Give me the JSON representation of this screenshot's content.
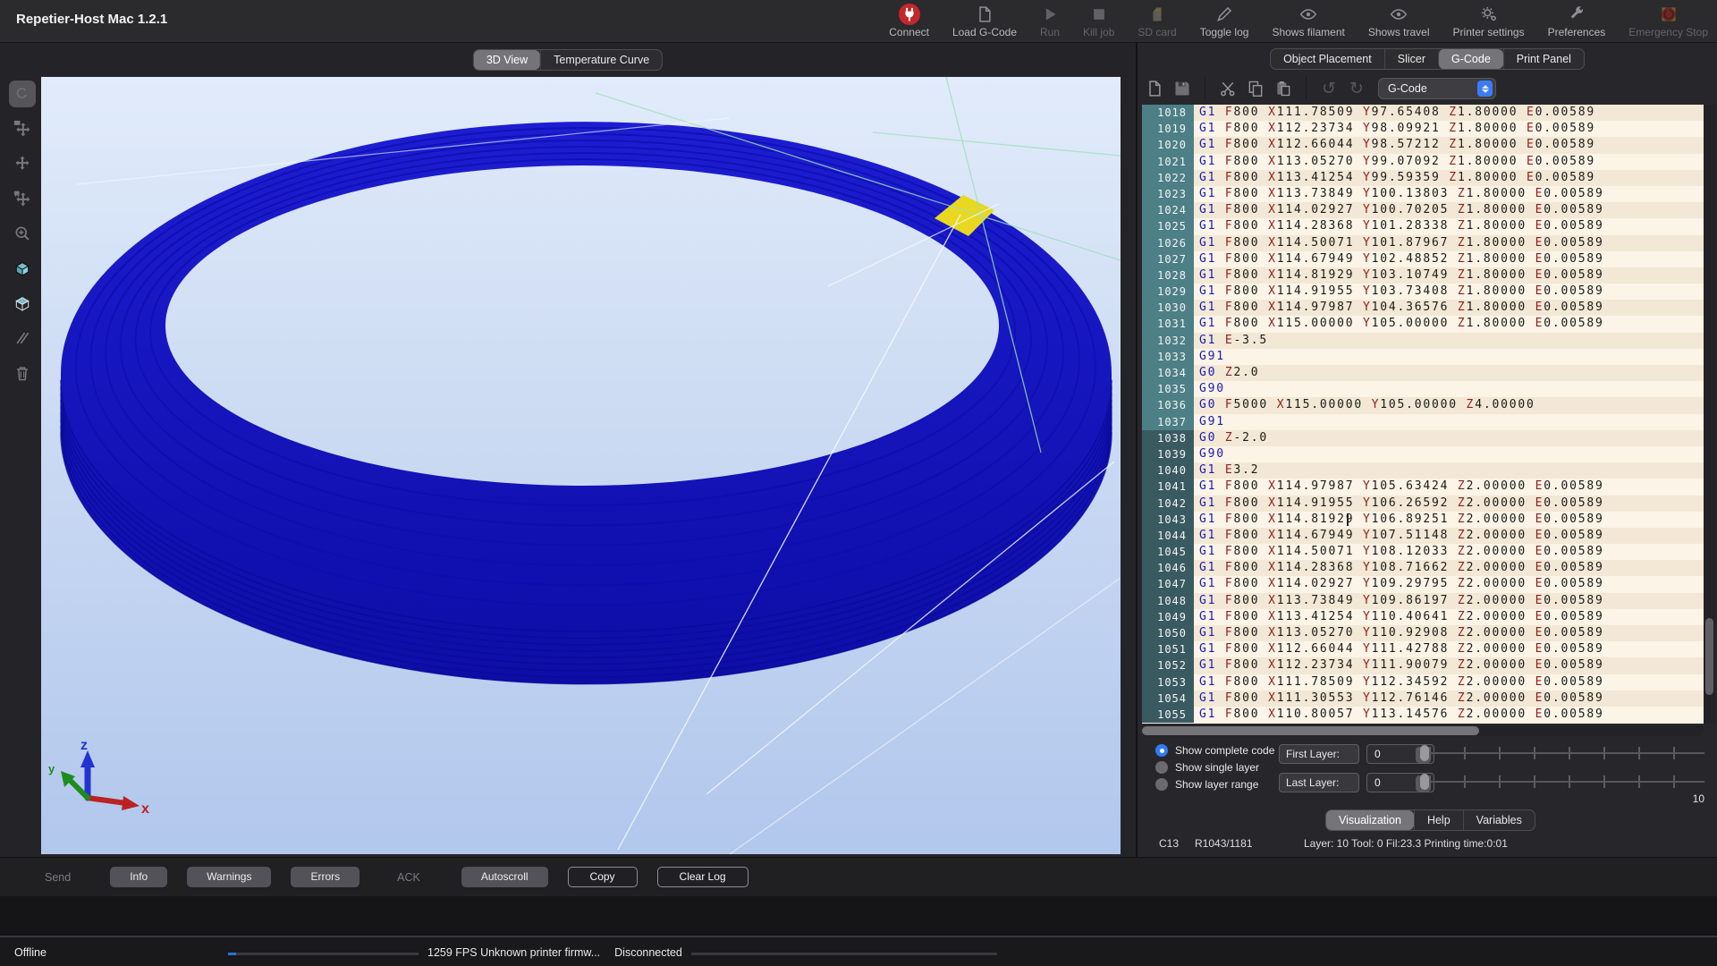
{
  "app": {
    "title": "Repetier-Host Mac 1.2.1"
  },
  "toolbar": {
    "items": [
      {
        "name": "connect",
        "label": "Connect",
        "disabled": false
      },
      {
        "name": "load-gcode",
        "label": "Load G-Code",
        "disabled": false
      },
      {
        "name": "run",
        "label": "Run",
        "disabled": true
      },
      {
        "name": "kill-job",
        "label": "Kill job",
        "disabled": true
      },
      {
        "name": "sd-card",
        "label": "SD card",
        "disabled": true
      },
      {
        "name": "toggle-log",
        "label": "Toggle log",
        "disabled": false
      },
      {
        "name": "shows-filament",
        "label": "Shows filament",
        "disabled": false
      },
      {
        "name": "shows-travel",
        "label": "Shows travel",
        "disabled": false
      },
      {
        "name": "printer-settings",
        "label": "Printer settings",
        "disabled": false
      },
      {
        "name": "preferences",
        "label": "Preferences",
        "disabled": false
      },
      {
        "name": "emergency-stop",
        "label": "Emergency Stop",
        "disabled": true
      }
    ]
  },
  "view_tabs": {
    "items": [
      {
        "label": "3D View",
        "active": true
      },
      {
        "label": "Temperature Curve",
        "active": false
      }
    ]
  },
  "canvas": {
    "tools": [
      {
        "name": "view-mode-button"
      },
      {
        "name": "rotate-camera-tool"
      },
      {
        "name": "move-viewpoint-tool"
      },
      {
        "name": "move-object-tool"
      },
      {
        "name": "zoom-tool"
      },
      {
        "name": "filament-visualization-toggle"
      },
      {
        "name": "travel-visualization-toggle"
      },
      {
        "name": "cross-section-tool"
      },
      {
        "name": "delete-object-button"
      }
    ],
    "axis": {
      "z": "z",
      "x": "x",
      "y": "y"
    }
  },
  "right_tabs": {
    "items": [
      {
        "label": "Object Placement",
        "active": false
      },
      {
        "label": "Slicer",
        "active": false
      },
      {
        "label": "G-Code",
        "active": true
      },
      {
        "label": "Print Panel",
        "active": false
      }
    ]
  },
  "editor": {
    "toolbar_icons": [
      "new-file",
      "save",
      "|",
      "cut",
      "copy",
      "paste",
      "|",
      "undo",
      "redo"
    ],
    "dropdown_value": "G-Code",
    "gutter_dark_from": 1038,
    "caret_line": 1043,
    "lines": [
      {
        "n": 1018,
        "t": "G1 F800 X111.78509 Y97.65408 Z1.80000 E0.00589"
      },
      {
        "n": 1019,
        "t": "G1 F800 X112.23734 Y98.09921 Z1.80000 E0.00589"
      },
      {
        "n": 1020,
        "t": "G1 F800 X112.66044 Y98.57212 Z1.80000 E0.00589"
      },
      {
        "n": 1021,
        "t": "G1 F800 X113.05270 Y99.07092 Z1.80000 E0.00589"
      },
      {
        "n": 1022,
        "t": "G1 F800 X113.41254 Y99.59359 Z1.80000 E0.00589"
      },
      {
        "n": 1023,
        "t": "G1 F800 X113.73849 Y100.13803 Z1.80000 E0.00589"
      },
      {
        "n": 1024,
        "t": "G1 F800 X114.02927 Y100.70205 Z1.80000 E0.00589"
      },
      {
        "n": 1025,
        "t": "G1 F800 X114.28368 Y101.28338 Z1.80000 E0.00589"
      },
      {
        "n": 1026,
        "t": "G1 F800 X114.50071 Y101.87967 Z1.80000 E0.00589"
      },
      {
        "n": 1027,
        "t": "G1 F800 X114.67949 Y102.48852 Z1.80000 E0.00589"
      },
      {
        "n": 1028,
        "t": "G1 F800 X114.81929 Y103.10749 Z1.80000 E0.00589"
      },
      {
        "n": 1029,
        "t": "G1 F800 X114.91955 Y103.73408 Z1.80000 E0.00589"
      },
      {
        "n": 1030,
        "t": "G1 F800 X114.97987 Y104.36576 Z1.80000 E0.00589"
      },
      {
        "n": 1031,
        "t": "G1 F800 X115.00000 Y105.00000 Z1.80000 E0.00589"
      },
      {
        "n": 1032,
        "t": "G1 E-3.5"
      },
      {
        "n": 1033,
        "t": "G91"
      },
      {
        "n": 1034,
        "t": "G0 Z2.0"
      },
      {
        "n": 1035,
        "t": "G90"
      },
      {
        "n": 1036,
        "t": "G0 F5000 X115.00000 Y105.00000 Z4.00000"
      },
      {
        "n": 1037,
        "t": "G91"
      },
      {
        "n": 1038,
        "t": "G0 Z-2.0"
      },
      {
        "n": 1039,
        "t": "G90"
      },
      {
        "n": 1040,
        "t": "G1 E3.2"
      },
      {
        "n": 1041,
        "t": "G1 F800 X114.97987 Y105.63424 Z2.00000 E0.00589"
      },
      {
        "n": 1042,
        "t": "G1 F800 X114.91955 Y106.26592 Z2.00000 E0.00589"
      },
      {
        "n": 1043,
        "t": "G1 F800 X114.81929 Y106.89251 Z2.00000 E0.00589"
      },
      {
        "n": 1044,
        "t": "G1 F800 X114.67949 Y107.51148 Z2.00000 E0.00589"
      },
      {
        "n": 1045,
        "t": "G1 F800 X114.50071 Y108.12033 Z2.00000 E0.00589"
      },
      {
        "n": 1046,
        "t": "G1 F800 X114.28368 Y108.71662 Z2.00000 E0.00589"
      },
      {
        "n": 1047,
        "t": "G1 F800 X114.02927 Y109.29795 Z2.00000 E0.00589"
      },
      {
        "n": 1048,
        "t": "G1 F800 X113.73849 Y109.86197 Z2.00000 E0.00589"
      },
      {
        "n": 1049,
        "t": "G1 F800 X113.41254 Y110.40641 Z2.00000 E0.00589"
      },
      {
        "n": 1050,
        "t": "G1 F800 X113.05270 Y110.92908 Z2.00000 E0.00589"
      },
      {
        "n": 1051,
        "t": "G1 F800 X112.66044 Y111.42788 Z2.00000 E0.00589"
      },
      {
        "n": 1052,
        "t": "G1 F800 X112.23734 Y111.90079 Z2.00000 E0.00589"
      },
      {
        "n": 1053,
        "t": "G1 F800 X111.78509 Y112.34592 Z2.00000 E0.00589"
      },
      {
        "n": 1054,
        "t": "G1 F800 X111.30553 Y112.76146 Z2.00000 E0.00589"
      },
      {
        "n": 1055,
        "t": "G1 F800 X110.80057 Y113.14576 Z2.00000 E0.00589"
      }
    ]
  },
  "viz": {
    "radios": [
      {
        "label": "Show complete code",
        "selected": true
      },
      {
        "label": "Show single layer",
        "selected": false
      },
      {
        "label": "Show layer range",
        "selected": false
      }
    ],
    "first_layer": {
      "label": "First Layer:",
      "value": "0"
    },
    "last_layer": {
      "label": "Last Layer:",
      "value": "0"
    },
    "slider_end_label": "10",
    "tabs": [
      {
        "label": "Visualization",
        "active": true
      },
      {
        "label": "Help",
        "active": false
      },
      {
        "label": "Variables",
        "active": false
      }
    ],
    "status_left": "C13",
    "status_mid": "R1043/1181",
    "status_info": "Layer: 10 Tool: 0 Fil:23.3 Printing time:0:01"
  },
  "log": {
    "send_label": "Send",
    "toggles": [
      "Info",
      "Warnings",
      "Errors"
    ],
    "ack_label": "ACK",
    "autoscroll_label": "Autoscroll",
    "copy_label": "Copy",
    "clear_label": "Clear Log"
  },
  "statusbar": {
    "mode": "Offline",
    "fps_info": "1259 FPS Unknown printer firmw...",
    "connection": "Disconnected"
  }
}
